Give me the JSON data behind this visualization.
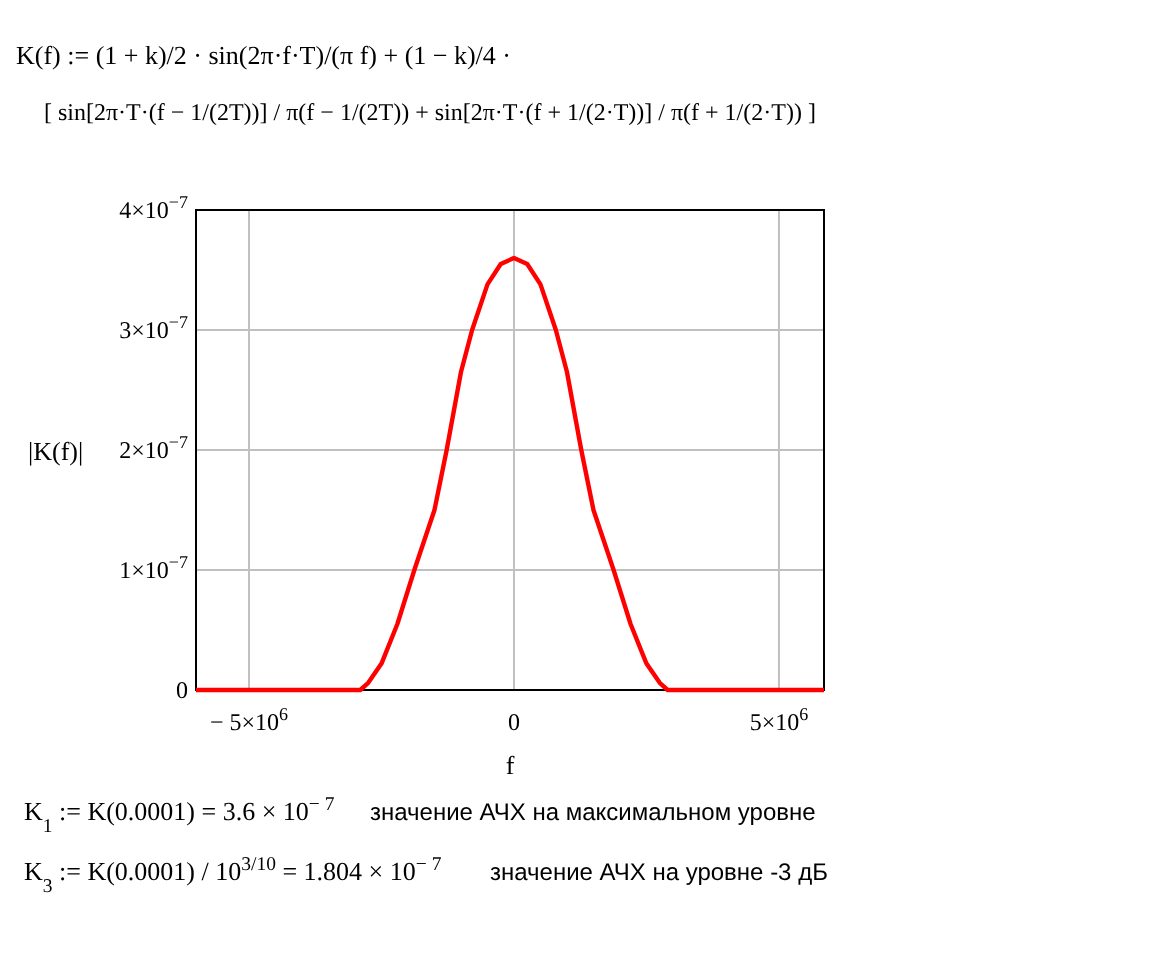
{
  "chart_data": {
    "type": "line",
    "xlabel": "f",
    "ylabel": "|K(f)|",
    "annotations": [
      "K(f) := (1 + k)/2 · sin(2π·f·T)/(π f) + (1 − k)/4 ·",
      "[ sin[2π·T·(f − 1/(2T))] / π(f − 1/(2T)) + sin[2π·T·(f + 1/(2·T))] / π(f + 1/(2·T)) ]",
      "K$_{1}$ := K(0.0001) = 3.6 × 10$^{− 7}$",
      "значение АЧХ на максимальном уровне",
      "K$_{3}$ := K(0.0001) / 10$^{3/10}$ = 1.804 × 10$^{− 7}$",
      "значение АЧХ на уровне -3 дБ"
    ],
    "xlim": [
      -6000000,
      5850000
    ],
    "ylim": [
      0,
      4e-07
    ],
    "xticks": [
      {
        "value": -5000000,
        "label": "− 5×10$^{6}$"
      },
      0,
      {
        "value": 5000000,
        "label": "5×10$^{6}$"
      }
    ],
    "yticks": [
      0,
      {
        "value": 1e-07,
        "label": "1×10$^{−7}$"
      },
      {
        "value": 2e-07,
        "label": "2×10$^{−7}$"
      },
      {
        "value": 3e-07,
        "label": "3×10$^{−7}$"
      },
      {
        "value": 4e-07,
        "label": "4×10$^{−7}$"
      }
    ],
    "grid": true,
    "marker": "none",
    "line_style": "solid",
    "series": [
      {
        "color": "#ff0000",
        "x": [
          -6000000,
          -5000000,
          -4000000,
          -3400000,
          -3000000,
          -2900000,
          -2750000,
          -2500000,
          -2200000,
          -1880000,
          -1500000,
          -1270000,
          -1000000,
          -790000,
          -500000,
          -250000,
          0,
          250000,
          500000,
          790000,
          1000000,
          1270000,
          1500000,
          1880000,
          2200000,
          2500000,
          2750000,
          2900000,
          3000000,
          3400000,
          4000000,
          5000000,
          5850000
        ],
        "values": [
          0,
          0,
          0,
          0,
          0,
          0,
          6e-09,
          2.2e-08,
          5.5e-08,
          1e-07,
          1.5e-07,
          2e-07,
          2.65e-07,
          3e-07,
          3.38e-07,
          3.55e-07,
          3.6e-07,
          3.55e-07,
          3.38e-07,
          3e-07,
          2.65e-07,
          2e-07,
          1.5e-07,
          1e-07,
          5.5e-08,
          2.2e-08,
          6e-09,
          0,
          0,
          0,
          0,
          0,
          0
        ]
      }
    ]
  }
}
